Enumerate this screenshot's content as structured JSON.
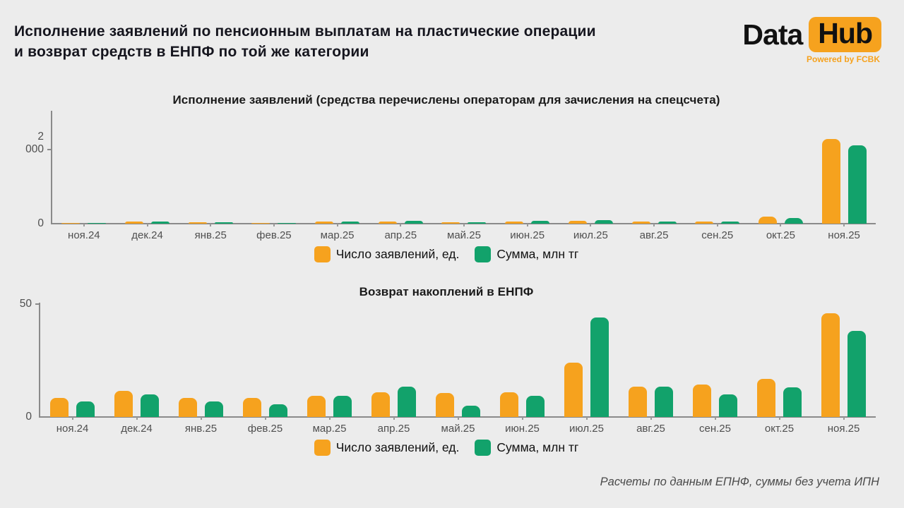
{
  "page": {
    "title_line1": "Исполнение заявлений по пенсионным выплатам на пластические операции",
    "title_line2": "и возврат средств в ЕНПФ по той же категории",
    "footer_note": "Расчеты по данным ЕПНФ, суммы без учета ИПН",
    "logo": {
      "part1": "Data",
      "part2": "Hub",
      "tagline": "Powered by FCBK"
    },
    "colors": {
      "background": "#ECECEC",
      "orange": "#F6A21E",
      "green": "#12A26B",
      "axis": "#8A8A8A",
      "text_dark": "#15151E",
      "text_muted": "#4F4F4F"
    }
  },
  "chart_data": [
    {
      "type": "bar",
      "title": "Исполнение заявлений (средства перечислены операторам для зачисления на спецсчета)",
      "categories": [
        "ноя.24",
        "дек.24",
        "янв.25",
        "фев.25",
        "мар.25",
        "апр.25",
        "май.25",
        "июн.25",
        "июл.25",
        "авг.25",
        "сен.25",
        "окт.25",
        "ноя.25"
      ],
      "series": [
        {
          "name": "Число заявлений, ед.",
          "color": "#F6A21E",
          "values": [
            10,
            50,
            35,
            25,
            50,
            55,
            40,
            55,
            70,
            65,
            65,
            190,
            2270
          ]
        },
        {
          "name": "Сумма, млн тг",
          "color": "#12A26B",
          "values": [
            10,
            55,
            45,
            20,
            55,
            70,
            35,
            70,
            95,
            55,
            55,
            160,
            2100
          ]
        }
      ],
      "xlabel": "",
      "ylabel": "",
      "ylim": [
        0,
        3000
      ],
      "yticks": [
        0,
        2000
      ],
      "ytick_labels": [
        "0",
        "2 000"
      ],
      "grid": false,
      "legend_position": "bottom"
    },
    {
      "type": "bar",
      "title": "Возврат накоплений в ЕНПФ",
      "categories": [
        "ноя.24",
        "дек.24",
        "янв.25",
        "фев.25",
        "мар.25",
        "апр.25",
        "май.25",
        "июн.25",
        "июл.25",
        "авг.25",
        "сен.25",
        "окт.25",
        "ноя.25"
      ],
      "series": [
        {
          "name": "Число заявлений, ед.",
          "color": "#F6A21E",
          "values": [
            8.5,
            11.5,
            8.5,
            8.5,
            9.5,
            11,
            10.5,
            11,
            24,
            13.5,
            14.5,
            17,
            46
          ]
        },
        {
          "name": "Сумма, млн тг",
          "color": "#12A26B",
          "values": [
            7,
            10,
            7,
            5.5,
            9.5,
            13.5,
            5,
            9.5,
            44,
            13.5,
            10,
            13,
            38
          ]
        }
      ],
      "xlabel": "",
      "ylabel": "",
      "ylim": [
        0,
        50
      ],
      "yticks": [
        0,
        50
      ],
      "ytick_labels": [
        "0",
        "50"
      ],
      "grid": false,
      "legend_position": "bottom"
    }
  ]
}
